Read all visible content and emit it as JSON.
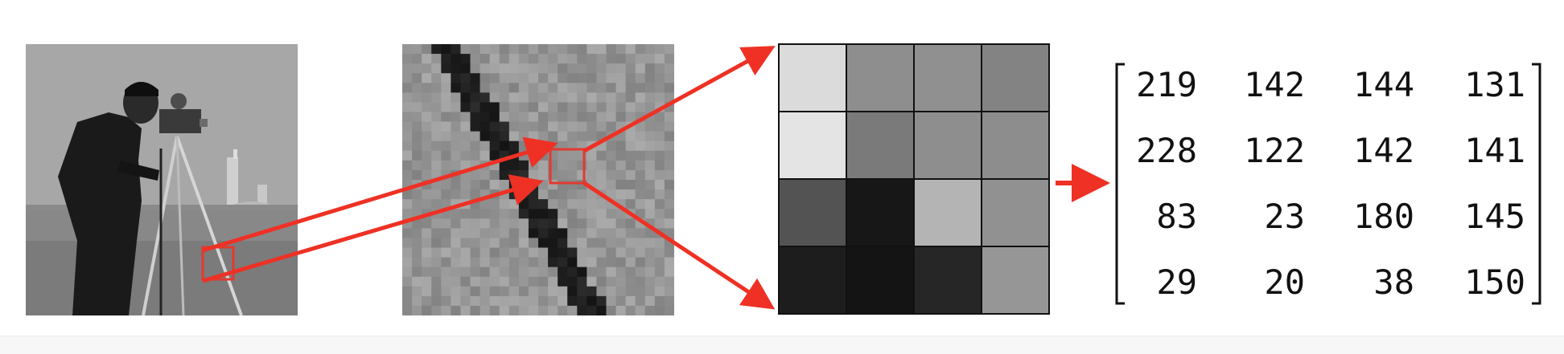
{
  "figure": {
    "photo_subject": "cameraman-grayscale-photo",
    "steps": [
      "full-image",
      "zoomed-patch",
      "4x4-pixel-grid",
      "pixel-value-matrix"
    ]
  },
  "colors": {
    "arrow": "#ee3124",
    "box": "#e23a2e",
    "background": "#ffffff"
  },
  "pixel_grid": {
    "rows": 4,
    "cols": 4,
    "values": [
      [
        219,
        142,
        144,
        131
      ],
      [
        228,
        122,
        142,
        141
      ],
      [
        83,
        23,
        180,
        145
      ],
      [
        29,
        20,
        38,
        150
      ]
    ]
  },
  "matrix": {
    "rows": [
      [
        "219",
        "142",
        "144",
        "131"
      ],
      [
        "228",
        "122",
        "142",
        "141"
      ],
      [
        "83",
        "23",
        "180",
        "145"
      ],
      [
        "29",
        "20",
        "38",
        "150"
      ]
    ]
  },
  "icons": [
    "red-arrow-icon"
  ]
}
